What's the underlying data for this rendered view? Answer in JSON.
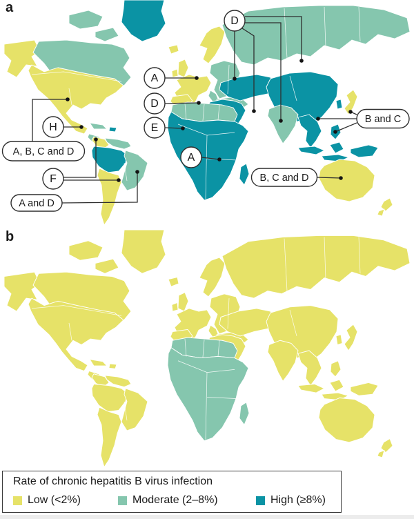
{
  "panels": {
    "a": {
      "label": "a"
    },
    "b": {
      "label": "b"
    }
  },
  "legend": {
    "title": "Rate of chronic hepatitis B virus infection",
    "items": [
      {
        "id": "low",
        "label": "Low (<2%)",
        "color": "#e6e268"
      },
      {
        "id": "moderate",
        "label": "Moderate (2–8%)",
        "color": "#85c6ae"
      },
      {
        "id": "high",
        "label": "High (≥8%)",
        "color": "#0b93a4"
      }
    ]
  },
  "panel_a_callouts": [
    {
      "id": "a-europe",
      "label": "A"
    },
    {
      "id": "d-mediterranean",
      "label": "D"
    },
    {
      "id": "e-west-africa",
      "label": "E"
    },
    {
      "id": "a-africa",
      "label": "A"
    },
    {
      "id": "d-eurasia",
      "label": "D"
    },
    {
      "id": "b-and-c-east-asia",
      "label": "B and C"
    },
    {
      "id": "b-c-and-d-australia",
      "label": "B, C and D"
    },
    {
      "id": "h-mexico",
      "label": "H"
    },
    {
      "id": "a-b-c-and-d-north-america",
      "label": "A, B, C and D"
    },
    {
      "id": "f-americas",
      "label": "F"
    },
    {
      "id": "a-and-d-south-america",
      "label": "A and D"
    }
  ],
  "map": {
    "regions": [
      {
        "id": "greenland",
        "panel_a": "high",
        "panel_b": "low"
      },
      {
        "id": "arctic-a",
        "panel_a": "moderate",
        "panel_b": "low"
      },
      {
        "id": "arctic-b",
        "panel_a": "moderate",
        "panel_b": "low"
      },
      {
        "id": "alaska",
        "panel_a": "low",
        "panel_b": "low"
      },
      {
        "id": "canada-north",
        "panel_a": "moderate",
        "panel_b": "low"
      },
      {
        "id": "usa-mexico",
        "panel_a": "low",
        "panel_b": "low"
      },
      {
        "id": "central-america",
        "panel_a": "moderate",
        "panel_b": "low"
      },
      {
        "id": "cuba",
        "panel_a": "moderate",
        "panel_b": "low"
      },
      {
        "id": "hispaniola",
        "panel_a": "high",
        "panel_b": "low"
      },
      {
        "id": "colombia",
        "panel_a": "low",
        "panel_b": "low"
      },
      {
        "id": "venezuela",
        "panel_a": "moderate",
        "panel_b": "low"
      },
      {
        "id": "peru-amazon",
        "panel_a": "high",
        "panel_b": "low"
      },
      {
        "id": "brazil-east",
        "panel_a": "moderate",
        "panel_b": "low"
      },
      {
        "id": "southern-cone",
        "panel_a": "low",
        "panel_b": "low"
      },
      {
        "id": "iceland",
        "panel_a": "low",
        "panel_b": "low"
      },
      {
        "id": "ireland",
        "panel_a": "low",
        "panel_b": "low"
      },
      {
        "id": "uk",
        "panel_a": "low",
        "panel_b": "low"
      },
      {
        "id": "scandinavia",
        "panel_a": "low",
        "panel_b": "low"
      },
      {
        "id": "west-europe",
        "panel_a": "low",
        "panel_b": "low"
      },
      {
        "id": "spain",
        "panel_a": "low",
        "panel_b": "low"
      },
      {
        "id": "italy",
        "panel_a": "moderate",
        "panel_b": "low"
      },
      {
        "id": "east-europe",
        "panel_a": "moderate",
        "panel_b": "low"
      },
      {
        "id": "balkans-turkey",
        "panel_a": "moderate",
        "panel_b": "low"
      },
      {
        "id": "russia",
        "panel_a": "moderate",
        "panel_b": "low"
      },
      {
        "id": "central-asia",
        "panel_a": "high",
        "panel_b": "low"
      },
      {
        "id": "middle-east",
        "panel_a": "high",
        "panel_b": "low"
      },
      {
        "id": "china",
        "panel_a": "high",
        "panel_b": "low"
      },
      {
        "id": "india",
        "panel_a": "moderate",
        "panel_b": "low"
      },
      {
        "id": "southeast-asia",
        "panel_a": "high",
        "panel_b": "low"
      },
      {
        "id": "indonesia-a",
        "panel_a": "high",
        "panel_b": "low"
      },
      {
        "id": "indonesia-b",
        "panel_a": "high",
        "panel_b": "low"
      },
      {
        "id": "borneo",
        "panel_a": "high",
        "panel_b": "low"
      },
      {
        "id": "philippines",
        "panel_a": "high",
        "panel_b": "low"
      },
      {
        "id": "japan",
        "panel_a": "low",
        "panel_b": "low"
      },
      {
        "id": "korea",
        "panel_a": "high",
        "panel_b": "low"
      },
      {
        "id": "north-africa",
        "panel_a": "moderate",
        "panel_b": "moderate"
      },
      {
        "id": "sub-saharan-africa",
        "panel_a": "high",
        "panel_b": "moderate"
      },
      {
        "id": "madagascar",
        "panel_a": "high",
        "panel_b": "moderate"
      },
      {
        "id": "new-guinea",
        "panel_a": "high",
        "panel_b": "low"
      },
      {
        "id": "australia",
        "panel_a": "low",
        "panel_b": "low"
      },
      {
        "id": "new-zealand-n",
        "panel_a": "low",
        "panel_b": "low"
      },
      {
        "id": "new-zealand-s",
        "panel_a": "low",
        "panel_b": "low"
      }
    ]
  }
}
